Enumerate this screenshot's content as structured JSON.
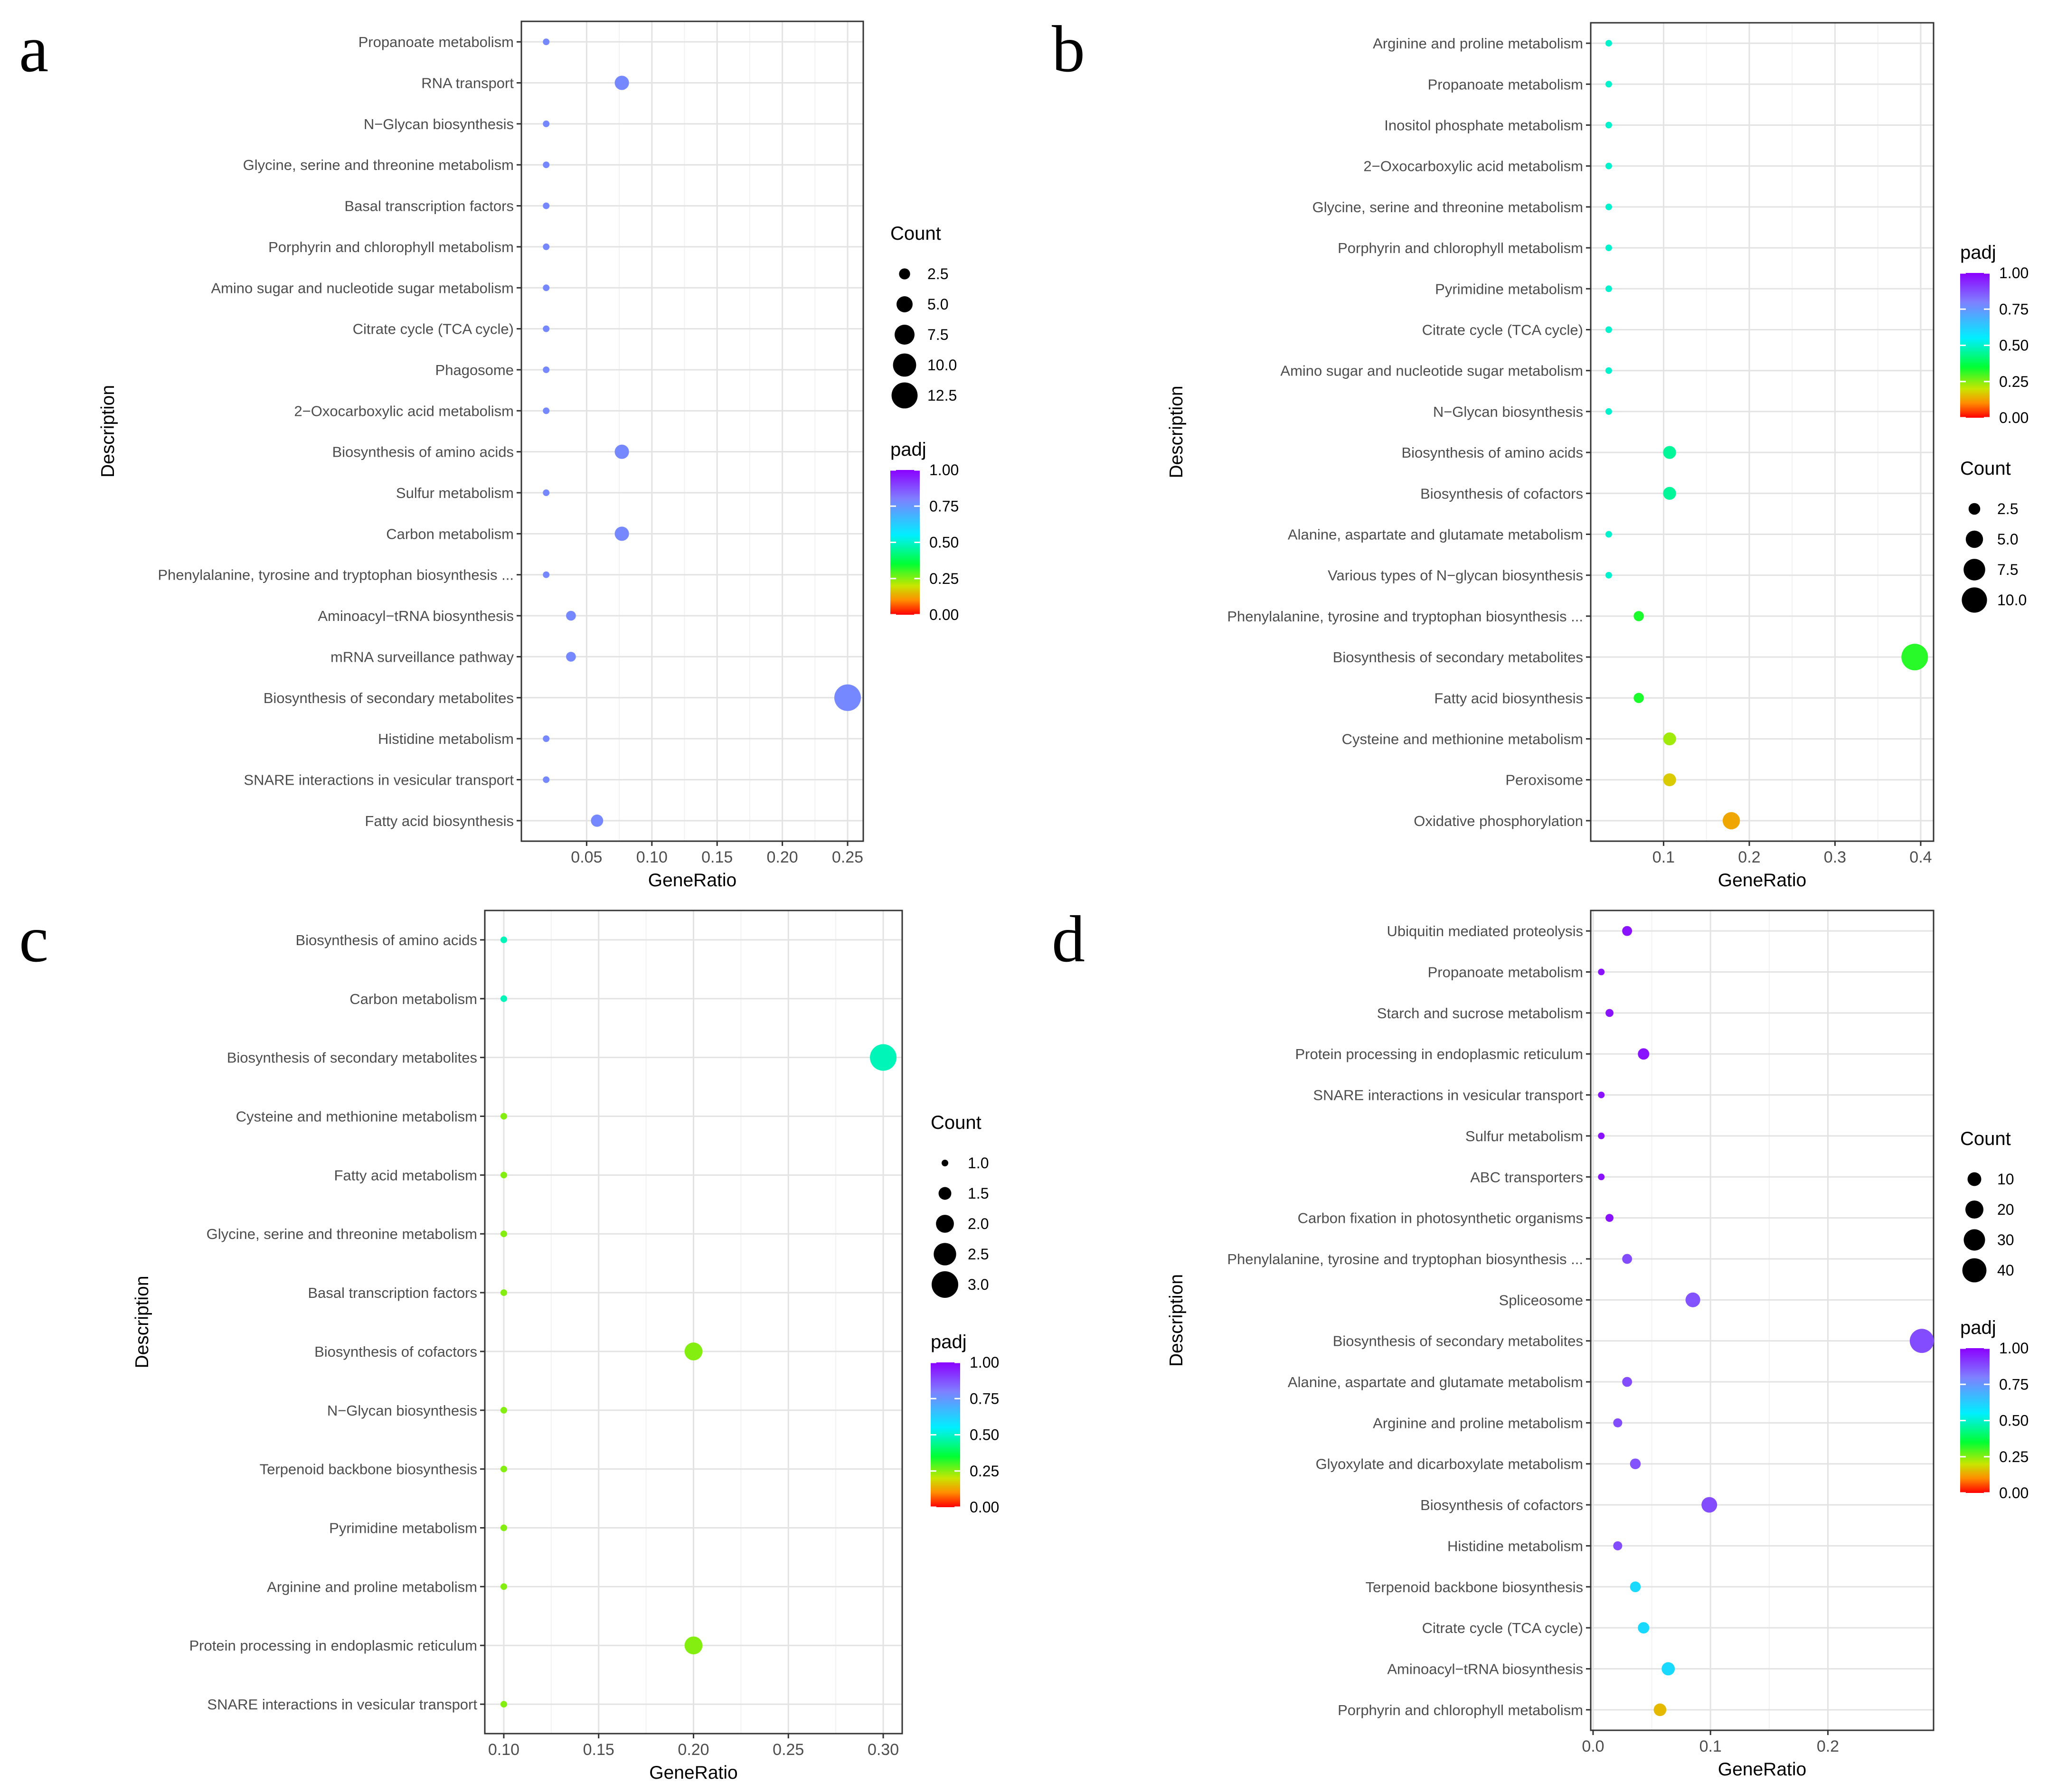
{
  "chart_data": [
    {
      "panel": "a",
      "type": "scatter",
      "xlabel": "GeneRatio",
      "ylabel": "Description",
      "xlim": [
        0.0,
        0.262
      ],
      "xticks": [
        0.05,
        0.1,
        0.15,
        0.2,
        0.25
      ],
      "xtick_labels": [
        "0.05",
        "0.10",
        "0.15",
        "0.20",
        "0.25"
      ],
      "grid": true,
      "legend_order": [
        "size",
        "color"
      ],
      "size_legend": {
        "title": "Count",
        "values": [
          2.5,
          5.0,
          7.5,
          10.0,
          12.5
        ],
        "labels": [
          "2.5",
          "5.0",
          "7.5",
          "10.0",
          "12.5"
        ],
        "range": [
          1,
          13
        ]
      },
      "color_legend": {
        "title": "padj",
        "ticks": [
          1.0,
          0.75,
          0.5,
          0.25,
          0.0
        ],
        "labels": [
          "1.00",
          "0.75",
          "0.50",
          "0.25",
          "0.00"
        ]
      },
      "categories": [
        "Propanoate metabolism",
        "RNA transport",
        "N−Glycan biosynthesis",
        "Glycine, serine and threonine metabolism",
        "Basal transcription factors",
        "Porphyrin and chlorophyll metabolism",
        "Amino sugar and nucleotide sugar metabolism",
        "Citrate cycle (TCA cycle)",
        "Phagosome",
        "2−Oxocarboxylic acid metabolism",
        "Biosynthesis of amino acids",
        "Sulfur metabolism",
        "Carbon metabolism",
        "Phenylalanine, tyrosine and tryptophan biosynthesis ...",
        "Aminoacyl−tRNA biosynthesis",
        "mRNA surveillance pathway",
        "Biosynthesis of secondary metabolites",
        "Histidine metabolism",
        "SNARE interactions in vesicular transport",
        "Fatty acid biosynthesis"
      ],
      "x": [
        0.019,
        0.077,
        0.019,
        0.019,
        0.019,
        0.019,
        0.019,
        0.019,
        0.019,
        0.019,
        0.077,
        0.019,
        0.077,
        0.019,
        0.038,
        0.038,
        0.25,
        0.019,
        0.019,
        0.058
      ],
      "count": [
        1,
        4,
        1,
        1,
        1,
        1,
        1,
        1,
        1,
        1,
        4,
        1,
        4,
        1,
        2,
        2,
        13,
        1,
        1,
        3
      ],
      "padj": [
        0.78,
        0.78,
        0.78,
        0.78,
        0.78,
        0.78,
        0.78,
        0.78,
        0.78,
        0.78,
        0.78,
        0.78,
        0.78,
        0.78,
        0.78,
        0.78,
        0.78,
        0.78,
        0.78,
        0.78
      ]
    },
    {
      "panel": "b",
      "type": "scatter",
      "xlabel": "GeneRatio",
      "ylabel": "Description",
      "xlim": [
        0.015,
        0.415
      ],
      "xticks": [
        0.1,
        0.2,
        0.3,
        0.4
      ],
      "xtick_labels": [
        "0.1",
        "0.2",
        "0.3",
        "0.4"
      ],
      "grid": true,
      "legend_order": [
        "color",
        "size"
      ],
      "size_legend": {
        "title": "Count",
        "values": [
          2.5,
          5.0,
          7.5,
          10.0
        ],
        "labels": [
          "2.5",
          "5.0",
          "7.5",
          "10.0"
        ],
        "range": [
          1,
          11
        ]
      },
      "color_legend": {
        "title": "padj",
        "ticks": [
          1.0,
          0.75,
          0.5,
          0.25,
          0.0
        ],
        "labels": [
          "1.00",
          "0.75",
          "0.50",
          "0.25",
          "0.00"
        ]
      },
      "categories": [
        "Arginine and proline metabolism",
        "Propanoate metabolism",
        "Inositol phosphate metabolism",
        "2−Oxocarboxylic acid metabolism",
        "Glycine, serine and threonine metabolism",
        "Porphyrin and chlorophyll metabolism",
        "Pyrimidine metabolism",
        "Citrate cycle (TCA cycle)",
        "Amino sugar and nucleotide sugar metabolism",
        "N−Glycan biosynthesis",
        "Biosynthesis of amino acids",
        "Biosynthesis of cofactors",
        "Alanine, aspartate and glutamate metabolism",
        "Various types of N−glycan biosynthesis",
        "Phenylalanine, tyrosine and tryptophan biosynthesis ...",
        "Biosynthesis of secondary metabolites",
        "Fatty acid biosynthesis",
        "Cysteine and methionine metabolism",
        "Peroxisome",
        "Oxidative phosphorylation"
      ],
      "x": [
        0.036,
        0.036,
        0.036,
        0.036,
        0.036,
        0.036,
        0.036,
        0.036,
        0.036,
        0.036,
        0.107,
        0.107,
        0.036,
        0.036,
        0.071,
        0.393,
        0.071,
        0.107,
        0.107,
        0.179
      ],
      "count": [
        1,
        1,
        1,
        1,
        1,
        1,
        1,
        1,
        1,
        1,
        3,
        3,
        1,
        1,
        2,
        11,
        2,
        3,
        3,
        5
      ],
      "padj": [
        0.5,
        0.5,
        0.5,
        0.5,
        0.5,
        0.5,
        0.5,
        0.5,
        0.5,
        0.5,
        0.45,
        0.45,
        0.5,
        0.5,
        0.33,
        0.32,
        0.33,
        0.23,
        0.17,
        0.13
      ]
    },
    {
      "panel": "c",
      "type": "scatter",
      "xlabel": "GeneRatio",
      "ylabel": "Description",
      "xlim": [
        0.09,
        0.31
      ],
      "xticks": [
        0.1,
        0.15,
        0.2,
        0.25,
        0.3
      ],
      "xtick_labels": [
        "0.10",
        "0.15",
        "0.20",
        "0.25",
        "0.30"
      ],
      "grid": true,
      "legend_order": [
        "size",
        "color"
      ],
      "size_legend": {
        "title": "Count",
        "values": [
          1.0,
          1.5,
          2.0,
          2.5,
          3.0
        ],
        "labels": [
          "1.0",
          "1.5",
          "2.0",
          "2.5",
          "3.0"
        ],
        "range": [
          1,
          3
        ]
      },
      "color_legend": {
        "title": "padj",
        "ticks": [
          1.0,
          0.75,
          0.5,
          0.25,
          0.0
        ],
        "labels": [
          "1.00",
          "0.75",
          "0.50",
          "0.25",
          "0.00"
        ]
      },
      "categories": [
        "Biosynthesis of amino acids",
        "Carbon metabolism",
        "Biosynthesis of secondary metabolites",
        "Cysteine and methionine metabolism",
        "Fatty acid metabolism",
        "Glycine, serine and threonine metabolism",
        "Basal transcription factors",
        "Biosynthesis of cofactors",
        "N−Glycan biosynthesis",
        "Terpenoid backbone biosynthesis",
        "Pyrimidine metabolism",
        "Arginine and proline metabolism",
        "Protein processing in endoplasmic reticulum",
        "SNARE interactions in vesicular transport"
      ],
      "x": [
        0.1,
        0.1,
        0.3,
        0.1,
        0.1,
        0.1,
        0.1,
        0.2,
        0.1,
        0.1,
        0.1,
        0.1,
        0.2,
        0.1
      ],
      "count": [
        1,
        1,
        3,
        1,
        1,
        1,
        1,
        2,
        1,
        1,
        1,
        1,
        2,
        1
      ],
      "padj": [
        0.48,
        0.48,
        0.48,
        0.25,
        0.25,
        0.25,
        0.25,
        0.25,
        0.25,
        0.25,
        0.25,
        0.25,
        0.25,
        0.25
      ]
    },
    {
      "panel": "d",
      "type": "scatter",
      "xlabel": "GeneRatio",
      "ylabel": "Description",
      "xlim": [
        -0.002,
        0.29
      ],
      "xticks": [
        0.0,
        0.1,
        0.2
      ],
      "xtick_labels": [
        "0.0",
        "0.1",
        "0.2"
      ],
      "grid": true,
      "legend_order": [
        "size",
        "color"
      ],
      "size_legend": {
        "title": "Count",
        "values": [
          10,
          20,
          30,
          40
        ],
        "labels": [
          "10",
          "20",
          "30",
          "40"
        ],
        "range": [
          1,
          50
        ]
      },
      "color_legend": {
        "title": "padj",
        "ticks": [
          1.0,
          0.75,
          0.5,
          0.25,
          0.0
        ],
        "labels": [
          "1.00",
          "0.75",
          "0.50",
          "0.25",
          "0.00"
        ]
      },
      "categories": [
        "Ubiquitin mediated proteolysis",
        "Propanoate metabolism",
        "Starch and sucrose metabolism",
        "Protein processing in endoplasmic reticulum",
        "SNARE interactions in vesicular transport",
        "Sulfur metabolism",
        "ABC transporters",
        "Carbon fixation in photosynthetic organisms",
        "Phenylalanine, tyrosine and tryptophan biosynthesis ...",
        "Spliceosome",
        "Biosynthesis of secondary metabolites",
        "Alanine, aspartate and glutamate metabolism",
        "Arginine and proline metabolism",
        "Glyoxylate and dicarboxylate metabolism",
        "Biosynthesis of cofactors",
        "Histidine metabolism",
        "Terpenoid backbone biosynthesis",
        "Citrate cycle (TCA cycle)",
        "Aminoacyl−tRNA biosynthesis",
        "Porphyrin and chlorophyll metabolism"
      ],
      "x": [
        0.029,
        0.007,
        0.014,
        0.043,
        0.007,
        0.007,
        0.007,
        0.014,
        0.029,
        0.085,
        0.28,
        0.029,
        0.021,
        0.036,
        0.099,
        0.021,
        0.036,
        0.043,
        0.064,
        0.057
      ],
      "count": [
        4,
        1,
        2,
        6,
        1,
        1,
        1,
        2,
        4,
        12,
        40,
        4,
        3,
        5,
        14,
        3,
        5,
        6,
        9,
        8
      ],
      "padj": [
        0.97,
        0.97,
        0.97,
        0.97,
        0.97,
        0.97,
        0.97,
        0.97,
        0.88,
        0.87,
        0.88,
        0.88,
        0.88,
        0.87,
        0.88,
        0.88,
        0.6,
        0.6,
        0.6,
        0.15
      ]
    }
  ]
}
